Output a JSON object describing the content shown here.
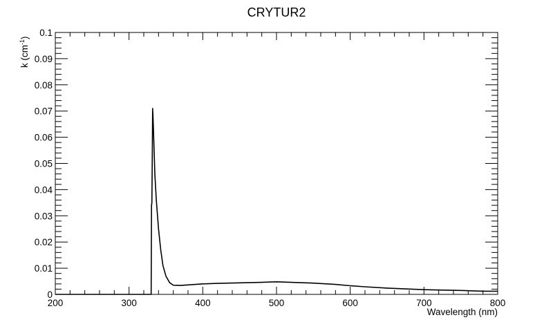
{
  "chart_data": {
    "type": "line",
    "title": "CRYTUR2",
    "xlabel": "Wavelength (nm)",
    "ylabel_base": "k (cm",
    "ylabel_sup": "-1",
    "ylabel_close": ")",
    "xlim": [
      200,
      800
    ],
    "ylim": [
      0,
      0.1
    ],
    "x_ticks": [
      200,
      300,
      400,
      500,
      600,
      700,
      800
    ],
    "x_tick_labels": [
      "200",
      "300",
      "400",
      "500",
      "600",
      "700",
      "800"
    ],
    "y_ticks": [
      0,
      0.01,
      0.02,
      0.03,
      0.04,
      0.05,
      0.06,
      0.07,
      0.08,
      0.09,
      0.1
    ],
    "y_tick_labels": [
      "0",
      "0.01",
      "0.02",
      "0.03",
      "0.04",
      "0.05",
      "0.06",
      "0.07",
      "0.08",
      "0.09",
      "0.1"
    ],
    "grid": false,
    "legend": "none",
    "line_color": "#000000",
    "series": [
      {
        "x": [
          200,
          250,
          300,
          330,
          330.5,
          331,
          331.5,
          332,
          332.5,
          333,
          334,
          335,
          337,
          340,
          343,
          346,
          350,
          355,
          360,
          370,
          380,
          400,
          420,
          450,
          480,
          500,
          520,
          550,
          580,
          600,
          620,
          650,
          700,
          750,
          780,
          800
        ],
        "y": [
          0,
          0,
          0,
          0,
          0.034,
          0.035,
          0.052,
          0.071,
          0.068,
          0.064,
          0.055,
          0.046,
          0.036,
          0.025,
          0.017,
          0.011,
          0.007,
          0.0045,
          0.0035,
          0.0034,
          0.0036,
          0.004,
          0.0042,
          0.0044,
          0.0046,
          0.0048,
          0.0046,
          0.0043,
          0.0038,
          0.0033,
          0.0029,
          0.0024,
          0.0018,
          0.0015,
          0.0012,
          0.0012
        ]
      }
    ]
  }
}
